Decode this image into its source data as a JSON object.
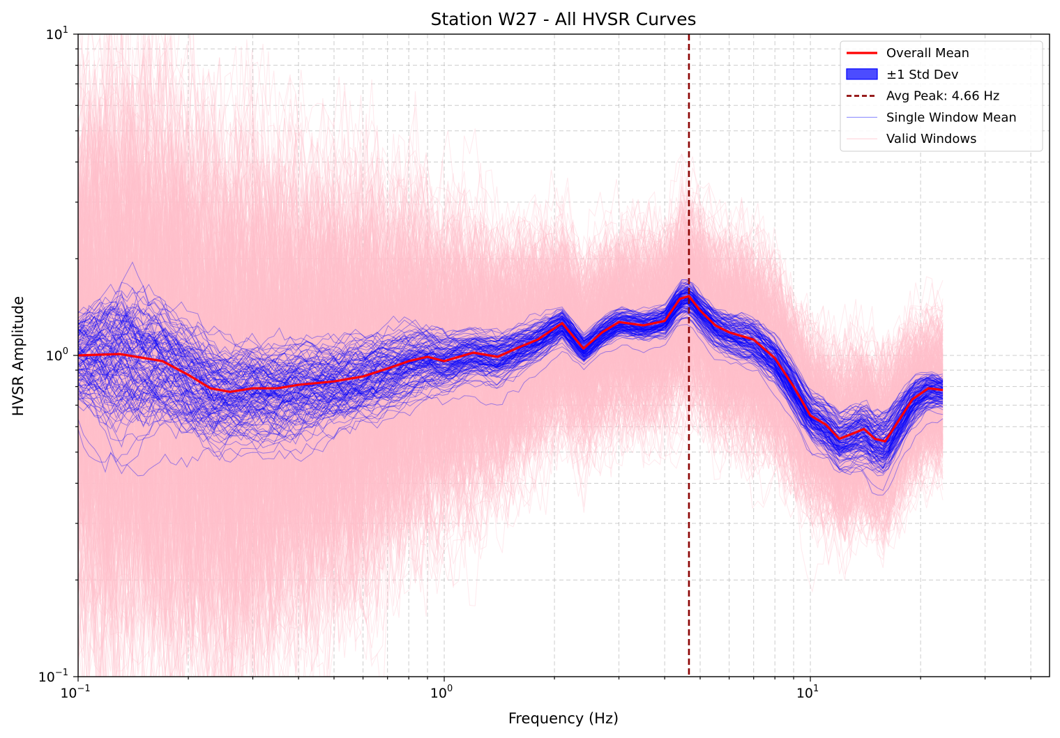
{
  "chart_data": {
    "type": "line",
    "title": "Station W27 - All HVSR Curves",
    "xlabel": "Frequency (Hz)",
    "ylabel": "HVSR Amplitude",
    "x_scale": "log",
    "y_scale": "log",
    "xlim": [
      0.1,
      45
    ],
    "ylim": [
      0.1,
      10
    ],
    "grid": true,
    "legend_position": "top-right",
    "x_ticks": [
      {
        "value": 0.1,
        "base": "10",
        "exp": "−1"
      },
      {
        "value": 1,
        "base": "10",
        "exp": "0"
      },
      {
        "value": 10,
        "base": "10",
        "exp": "1"
      }
    ],
    "y_ticks": [
      {
        "value": 0.1,
        "base": "10",
        "exp": "−1"
      },
      {
        "value": 1,
        "base": "10",
        "exp": "0"
      },
      {
        "value": 10,
        "base": "10",
        "exp": "1"
      }
    ],
    "avg_peak": {
      "value": 4.66,
      "label": "Avg Peak: 4.66 Hz",
      "color": "#8b0000"
    },
    "legend": [
      {
        "label": "Overall Mean",
        "kind": "line",
        "color": "#ff0000"
      },
      {
        "label": "±1 Std Dev",
        "kind": "patch",
        "color": "#0000ff"
      },
      {
        "label": "Avg Peak: 4.66 Hz",
        "kind": "dashed",
        "color": "#8b0000"
      },
      {
        "label": "Single Window Mean",
        "kind": "thin",
        "color": "#0000ff"
      },
      {
        "label": "Valid Windows",
        "kind": "thin",
        "color": "#ffc0cb"
      }
    ],
    "colors": {
      "overall_mean": "#ff0000",
      "single_window": "#0000ff",
      "valid_windows": "#ffc0cb",
      "avg_peak": "#8b0000"
    },
    "series": [
      {
        "name": "Overall Mean",
        "x": [
          0.1,
          0.13,
          0.17,
          0.2,
          0.23,
          0.26,
          0.3,
          0.35,
          0.4,
          0.5,
          0.6,
          0.7,
          0.8,
          0.9,
          1.0,
          1.2,
          1.4,
          1.6,
          1.8,
          2.1,
          2.4,
          2.7,
          3.0,
          3.5,
          4.0,
          4.4,
          4.66,
          5.0,
          5.5,
          6.0,
          7.0,
          8.0,
          9.0,
          10.0,
          11.0,
          12.0,
          13.0,
          14.0,
          15.0,
          16.0,
          17.0,
          19.0,
          21.0,
          23.0
        ],
        "y": [
          1.0,
          1.01,
          0.96,
          0.87,
          0.79,
          0.77,
          0.79,
          0.79,
          0.81,
          0.83,
          0.86,
          0.91,
          0.96,
          0.99,
          0.96,
          1.02,
          0.99,
          1.06,
          1.12,
          1.26,
          1.05,
          1.18,
          1.27,
          1.24,
          1.28,
          1.5,
          1.53,
          1.38,
          1.24,
          1.18,
          1.12,
          0.98,
          0.8,
          0.65,
          0.61,
          0.55,
          0.57,
          0.59,
          0.55,
          0.54,
          0.6,
          0.73,
          0.79,
          0.78
        ]
      },
      {
        "name": "Single Window Mean",
        "count": 120,
        "x": [
          0.1,
          0.13,
          0.17,
          0.2,
          0.23,
          0.26,
          0.3,
          0.35,
          0.4,
          0.5,
          0.6,
          0.7,
          0.8,
          0.9,
          1.0,
          1.2,
          1.4,
          1.6,
          1.8,
          2.1,
          2.4,
          2.7,
          3.0,
          3.5,
          4.0,
          4.4,
          4.66,
          5.0,
          5.5,
          6.0,
          7.0,
          8.0,
          9.0,
          10.0,
          11.0,
          12.0,
          13.0,
          14.0,
          15.0,
          16.0,
          17.0,
          19.0,
          21.0,
          23.0
        ],
        "spread": [
          0.65,
          0.95,
          0.75,
          0.7,
          0.65,
          0.6,
          0.6,
          0.6,
          0.6,
          0.55,
          0.5,
          0.5,
          0.45,
          0.4,
          0.35,
          0.3,
          0.3,
          0.28,
          0.25,
          0.2,
          0.18,
          0.18,
          0.18,
          0.18,
          0.2,
          0.22,
          0.22,
          0.22,
          0.24,
          0.25,
          0.28,
          0.28,
          0.3,
          0.3,
          0.32,
          0.34,
          0.36,
          0.4,
          0.42,
          0.45,
          0.38,
          0.3,
          0.25,
          0.22
        ]
      },
      {
        "name": "Valid Windows",
        "count": 600,
        "x": [
          0.1,
          0.13,
          0.17,
          0.2,
          0.23,
          0.26,
          0.3,
          0.35,
          0.4,
          0.5,
          0.6,
          0.7,
          0.8,
          0.9,
          1.0,
          1.2,
          1.4,
          1.6,
          1.8,
          2.1,
          2.4,
          2.7,
          3.0,
          3.5,
          4.0,
          4.4,
          4.66,
          5.0,
          5.5,
          6.0,
          7.0,
          8.0,
          9.0,
          10.0,
          11.0,
          12.0,
          13.0,
          14.0,
          15.0,
          16.0,
          17.0,
          19.0,
          21.0,
          23.0
        ],
        "spread": [
          2.6,
          2.7,
          2.6,
          2.5,
          2.4,
          2.4,
          2.3,
          2.2,
          2.1,
          2.0,
          1.9,
          1.7,
          1.6,
          1.5,
          1.4,
          1.3,
          1.2,
          1.1,
          1.0,
          0.95,
          0.9,
          0.9,
          0.9,
          0.9,
          0.9,
          0.95,
          0.95,
          0.95,
          0.95,
          0.95,
          0.95,
          0.9,
          0.85,
          0.85,
          0.85,
          0.85,
          0.85,
          0.85,
          0.85,
          0.85,
          0.8,
          0.75,
          0.7,
          0.7
        ]
      }
    ]
  }
}
